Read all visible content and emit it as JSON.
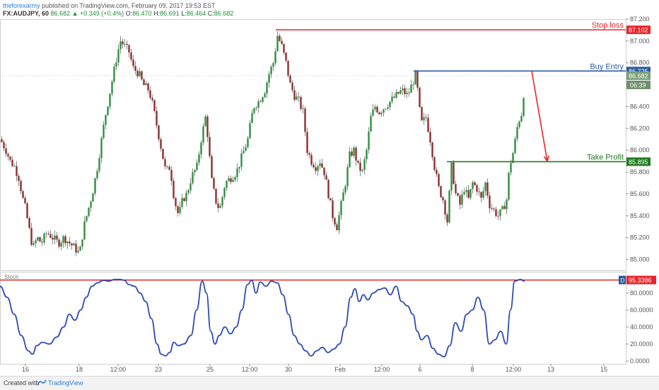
{
  "header": {
    "author": "theforexarmy",
    "published": "published on TradingView.com, February 09, 2017 19:53 EST"
  },
  "ohlc": {
    "symbol": "FX:AUDJPY, 60",
    "last": "86.682",
    "change": "+0.349 (+0.4%)",
    "open_label": "O:",
    "open": "86.470",
    "high_label": "H:",
    "high": "86.691",
    "low_label": "L:",
    "low": "86.464",
    "close_label": "C:",
    "close": "86.682"
  },
  "footer": {
    "created_with": "Created with",
    "brand": "TradingView"
  },
  "chart_data": [
    {
      "type": "candlestick",
      "ylim": [
        84.9,
        87.2
      ],
      "y_ticks": [
        "87.200",
        "87.000",
        "86.800",
        "86.600",
        "86.400",
        "86.200",
        "86.000",
        "85.800",
        "85.600",
        "85.400",
        "85.200",
        "85.000"
      ],
      "x_ticks": [
        "16",
        "18",
        "12:00",
        "23",
        "25",
        "12:00",
        "30",
        "Feb",
        "12:00",
        "6",
        "8",
        "12:00",
        "13",
        "15"
      ],
      "path": [
        [
          0,
          86.1
        ],
        [
          8,
          86.0
        ],
        [
          14,
          85.9
        ],
        [
          20,
          85.85
        ],
        [
          26,
          85.75
        ],
        [
          32,
          85.55
        ],
        [
          36,
          85.45
        ],
        [
          40,
          85.3
        ],
        [
          46,
          85.1
        ],
        [
          52,
          85.2
        ],
        [
          58,
          85.15
        ],
        [
          66,
          85.25
        ],
        [
          74,
          85.2
        ],
        [
          82,
          85.15
        ],
        [
          90,
          85.2
        ],
        [
          98,
          85.15
        ],
        [
          106,
          85.1
        ],
        [
          112,
          85.05
        ],
        [
          118,
          85.3
        ],
        [
          124,
          85.45
        ],
        [
          130,
          85.6
        ],
        [
          136,
          85.8
        ],
        [
          142,
          86.05
        ],
        [
          148,
          86.3
        ],
        [
          154,
          86.5
        ],
        [
          160,
          86.7
        ],
        [
          166,
          86.9
        ],
        [
          170,
          87.0
        ],
        [
          176,
          86.95
        ],
        [
          182,
          86.9
        ],
        [
          188,
          86.75
        ],
        [
          196,
          86.7
        ],
        [
          202,
          86.6
        ],
        [
          210,
          86.55
        ],
        [
          216,
          86.4
        ],
        [
          222,
          86.2
        ],
        [
          228,
          86.0
        ],
        [
          234,
          85.8
        ],
        [
          240,
          85.85
        ],
        [
          246,
          85.55
        ],
        [
          252,
          85.4
        ],
        [
          258,
          85.55
        ],
        [
          264,
          85.6
        ],
        [
          270,
          85.75
        ],
        [
          278,
          85.85
        ],
        [
          284,
          86.1
        ],
        [
          290,
          86.3
        ],
        [
          294,
          86.1
        ],
        [
          298,
          85.75
        ],
        [
          304,
          85.55
        ],
        [
          310,
          85.45
        ],
        [
          318,
          85.7
        ],
        [
          326,
          85.75
        ],
        [
          334,
          85.8
        ],
        [
          342,
          85.95
        ],
        [
          350,
          86.1
        ],
        [
          358,
          86.4
        ],
        [
          366,
          86.45
        ],
        [
          374,
          86.55
        ],
        [
          380,
          86.7
        ],
        [
          386,
          86.8
        ],
        [
          392,
          87.05
        ],
        [
          398,
          86.95
        ],
        [
          404,
          86.8
        ],
        [
          410,
          86.6
        ],
        [
          416,
          86.5
        ],
        [
          422,
          86.45
        ],
        [
          428,
          86.35
        ],
        [
          434,
          86.0
        ],
        [
          440,
          85.9
        ],
        [
          446,
          85.85
        ],
        [
          452,
          85.9
        ],
        [
          458,
          85.8
        ],
        [
          464,
          85.6
        ],
        [
          470,
          85.4
        ],
        [
          476,
          85.3
        ],
        [
          482,
          85.5
        ],
        [
          488,
          85.7
        ],
        [
          494,
          85.95
        ],
        [
          500,
          86.0
        ],
        [
          506,
          85.85
        ],
        [
          512,
          85.8
        ],
        [
          518,
          86.0
        ],
        [
          524,
          86.3
        ],
        [
          530,
          86.4
        ],
        [
          536,
          86.35
        ],
        [
          544,
          86.4
        ],
        [
          552,
          86.45
        ],
        [
          560,
          86.5
        ],
        [
          568,
          86.55
        ],
        [
          576,
          86.5
        ],
        [
          582,
          86.6
        ],
        [
          588,
          86.7
        ],
        [
          592,
          86.4
        ],
        [
          596,
          86.25
        ],
        [
          602,
          86.3
        ],
        [
          608,
          86.1
        ],
        [
          614,
          85.85
        ],
        [
          620,
          85.65
        ],
        [
          626,
          85.55
        ],
        [
          632,
          85.35
        ],
        [
          638,
          85.85
        ],
        [
          644,
          85.6
        ],
        [
          650,
          85.5
        ],
        [
          656,
          85.65
        ],
        [
          662,
          85.55
        ],
        [
          668,
          85.7
        ],
        [
          674,
          85.65
        ],
        [
          680,
          85.55
        ],
        [
          686,
          85.7
        ],
        [
          692,
          85.5
        ],
        [
          698,
          85.45
        ],
        [
          704,
          85.4
        ],
        [
          710,
          85.45
        ],
        [
          716,
          85.55
        ],
        [
          720,
          85.85
        ],
        [
          726,
          86.0
        ],
        [
          732,
          86.25
        ],
        [
          738,
          86.35
        ],
        [
          742,
          86.68
        ]
      ],
      "annotations": [
        {
          "label": "Stop loss",
          "price": "87.102",
          "y": 87.102,
          "x_start": 390,
          "color": "#e8242a"
        },
        {
          "label": "Buy Entry",
          "price": "86.725",
          "y": 86.725,
          "x_start": 585,
          "color": "#2c5aa0"
        },
        {
          "label": "Take Profit",
          "price": "85.895",
          "y": 85.895,
          "x_start": 632,
          "color": "#1f7a1f"
        }
      ],
      "last_price": {
        "value": "86.682",
        "y": 86.682,
        "countdown": "06:39",
        "color": "#7aa07a"
      },
      "arrow": {
        "from": [
          752,
          86.725
        ],
        "to": [
          774,
          85.9
        ],
        "color": "#e8242a"
      }
    },
    {
      "type": "line",
      "series": [
        {
          "name": "Stoch",
          "color": "#2c4bb5"
        }
      ],
      "ylim": [
        0,
        100
      ],
      "y_ticks": [
        "80.0000",
        "60.0000",
        "40.0000",
        "20.0000",
        "0.0000"
      ],
      "current": {
        "value": "95.3386",
        "y": 95.3386,
        "tag": "D",
        "color": "#e8242a"
      },
      "level_line": 95.3386,
      "x": [
        0,
        10,
        20,
        30,
        40,
        46,
        52,
        60,
        70,
        80,
        90,
        98,
        106,
        114,
        122,
        130,
        138,
        146,
        154,
        162,
        170,
        176,
        182,
        190,
        198,
        206,
        214,
        222,
        228,
        234,
        240,
        246,
        252,
        260,
        270,
        278,
        286,
        292,
        298,
        304,
        310,
        318,
        326,
        334,
        342,
        350,
        356,
        362,
        368,
        376,
        384,
        392,
        400,
        408,
        416,
        424,
        432,
        440,
        448,
        456,
        464,
        472,
        480,
        488,
        496,
        502,
        508,
        514,
        520,
        528,
        536,
        544,
        552,
        560,
        568,
        576,
        584,
        590,
        596,
        604,
        612,
        620,
        628,
        636,
        644,
        652,
        660,
        668,
        676,
        684,
        692,
        700,
        708,
        716,
        722,
        728,
        736,
        742
      ],
      "values": [
        88,
        75,
        55,
        30,
        12,
        8,
        18,
        22,
        20,
        28,
        40,
        55,
        48,
        60,
        75,
        88,
        92,
        95,
        94,
        96,
        96,
        95,
        90,
        88,
        80,
        70,
        50,
        20,
        8,
        6,
        10,
        22,
        18,
        20,
        30,
        60,
        94,
        80,
        35,
        20,
        30,
        40,
        32,
        40,
        60,
        90,
        95,
        80,
        93,
        88,
        94,
        92,
        78,
        55,
        30,
        20,
        12,
        6,
        12,
        16,
        10,
        14,
        20,
        40,
        75,
        85,
        70,
        78,
        72,
        80,
        84,
        86,
        78,
        88,
        70,
        65,
        55,
        35,
        25,
        30,
        15,
        8,
        5,
        18,
        45,
        35,
        55,
        60,
        75,
        60,
        20,
        25,
        35,
        20,
        60,
        94,
        96,
        94
      ]
    }
  ]
}
